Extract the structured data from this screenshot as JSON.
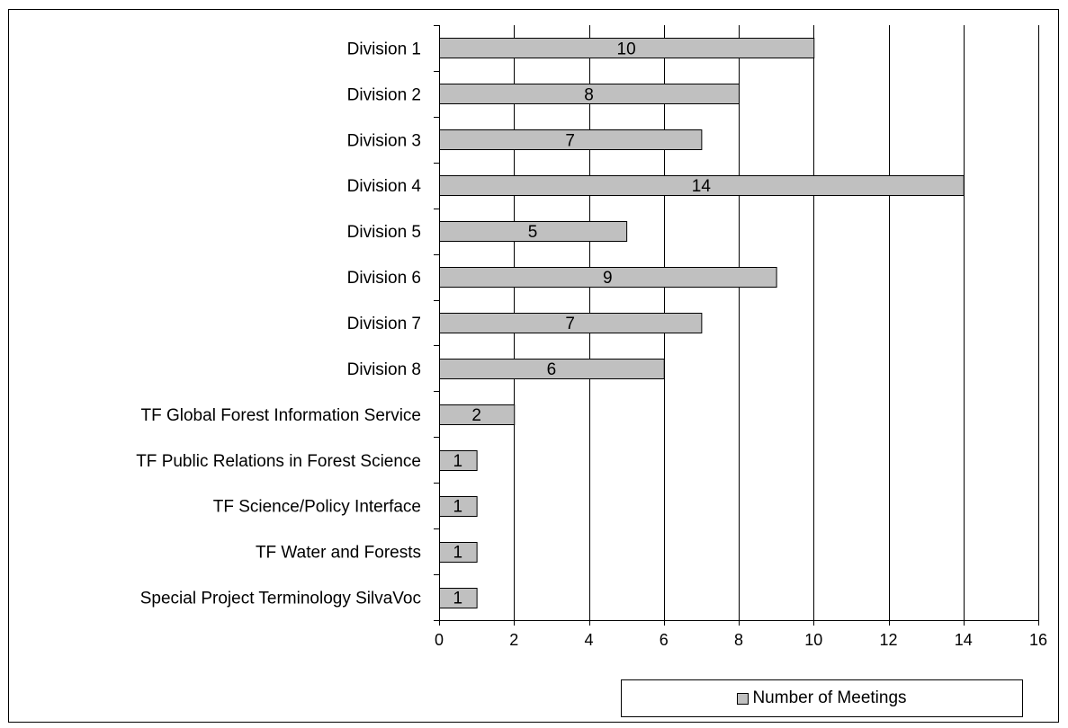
{
  "chart_data": {
    "type": "bar",
    "orientation": "horizontal",
    "categories": [
      "Division 1",
      "Division 2",
      "Division 3",
      "Division 4",
      "Division 5",
      "Division 6",
      "Division 7",
      "Division 8",
      "TF Global Forest Information Service",
      "TF Public Relations in Forest Science",
      "TF Science/Policy Interface",
      "TF Water and Forests",
      "Special Project Terminology SilvaVoc"
    ],
    "series": [
      {
        "name": "Number of Meetings",
        "values": [
          10,
          8,
          7,
          14,
          5,
          9,
          7,
          6,
          2,
          1,
          1,
          1,
          1
        ],
        "color": "#c0c0c0"
      }
    ],
    "xlim": [
      0,
      16
    ],
    "xticks": [
      0,
      2,
      4,
      6,
      8,
      10,
      12,
      14,
      16
    ],
    "grid": "vertical",
    "data_labels": true,
    "legend_position": "bottom-right"
  }
}
